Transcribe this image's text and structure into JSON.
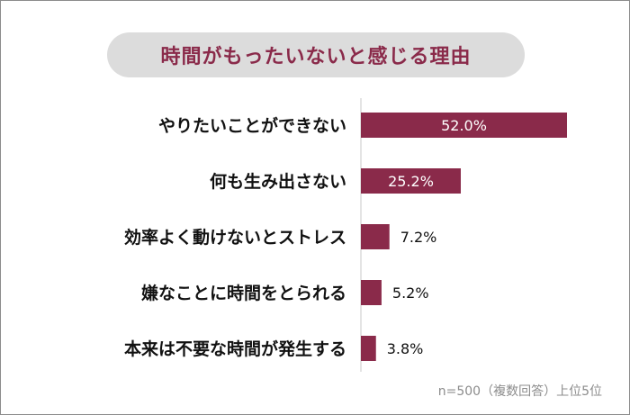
{
  "chart_data": {
    "type": "bar",
    "orientation": "horizontal",
    "title": "時間がもったいないと感じる理由",
    "categories": [
      "やりたいことができない",
      "何も生み出さない",
      "効率よく動けないとストレス",
      "嫌なことに時間をとられる",
      "本来は不要な時間が発生する"
    ],
    "values": [
      52.0,
      25.2,
      7.2,
      5.2,
      3.8
    ],
    "value_labels": [
      "52.0%",
      "25.2%",
      "7.2%",
      "5.2%",
      "3.8%"
    ],
    "xlim": [
      0,
      52
    ],
    "bar_color": "#8a2a4a",
    "grid": false,
    "note": "n=500（複数回答）上位5位"
  },
  "colors": {
    "title_text": "#8a2a4a",
    "title_background": "#dcdcdc",
    "footnote_text": "#8c8c8c"
  }
}
